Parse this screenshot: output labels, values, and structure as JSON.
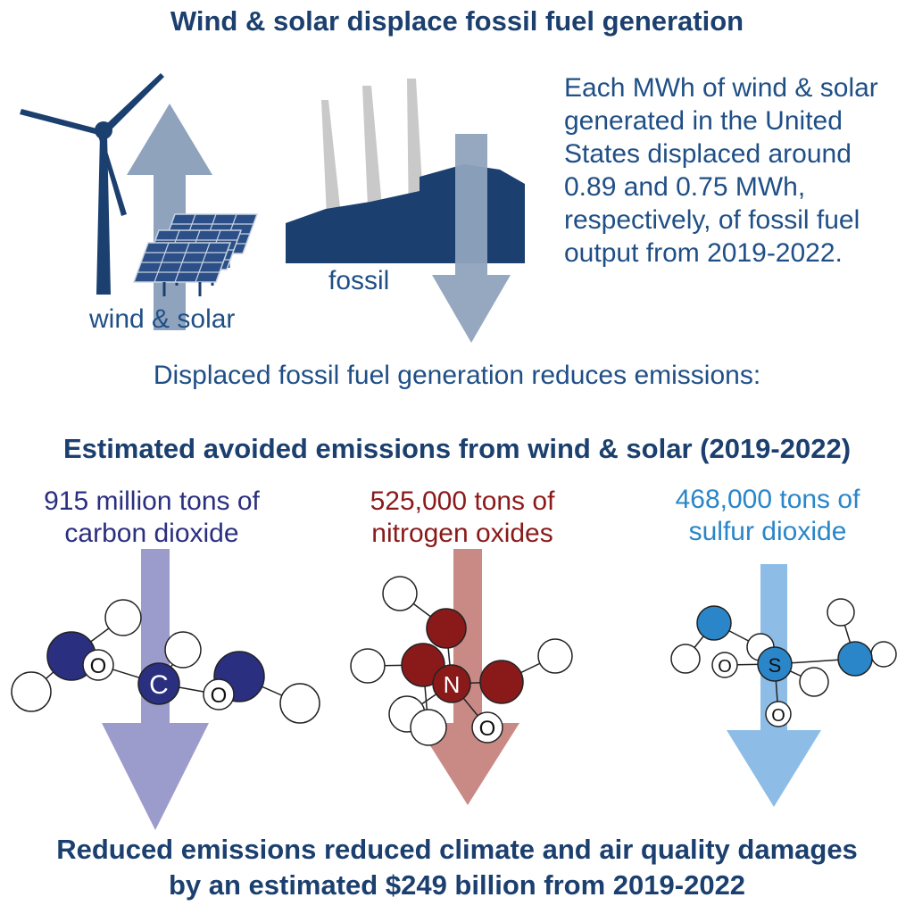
{
  "title": "Wind & solar displace fossil fuel generation",
  "top": {
    "wind_solar_label": "wind & solar",
    "fossil_label": "fossil",
    "description_lines": [
      "Each MWh of wind & solar",
      "generated in the United",
      "States displaced around",
      "0.89 and 0.75 MWh,",
      "respectively, of fossil fuel",
      "output from 2019-2022."
    ]
  },
  "intro": "Displaced fossil fuel generation reduces emissions:",
  "subtitle": "Estimated avoided emissions from wind & solar (2019-2022)",
  "emissions": [
    {
      "line1": "915 million tons of",
      "line2": "carbon dioxide",
      "atom_center": "C",
      "atom_side": "O",
      "color": "#2b2f80"
    },
    {
      "line1": "525,000 tons of",
      "line2": "nitrogen oxides",
      "atom_center": "N",
      "atom_side": "O",
      "color": "#8a1a1a"
    },
    {
      "line1": "468,000 tons of",
      "line2": "sulfur dioxide",
      "atom_center": "S",
      "atom_side": "O",
      "color": "#2a86c8"
    }
  ],
  "footer": {
    "line1": "Reduced emissions reduced climate and air quality damages",
    "line2": "by an estimated $249 billion from 2019-2022"
  },
  "colors": {
    "navy": "#1b3f6e",
    "arrow_grey": "#8fa3bd",
    "co2_arrow": "#9b9ccc",
    "nox_arrow": "#c98a86",
    "so2_arrow": "#8dbde6"
  },
  "icons": [
    "wind-turbine-icon",
    "solar-panel-icon",
    "power-plant-icon",
    "up-arrow-icon",
    "down-arrow-icon",
    "molecule-icon"
  ]
}
